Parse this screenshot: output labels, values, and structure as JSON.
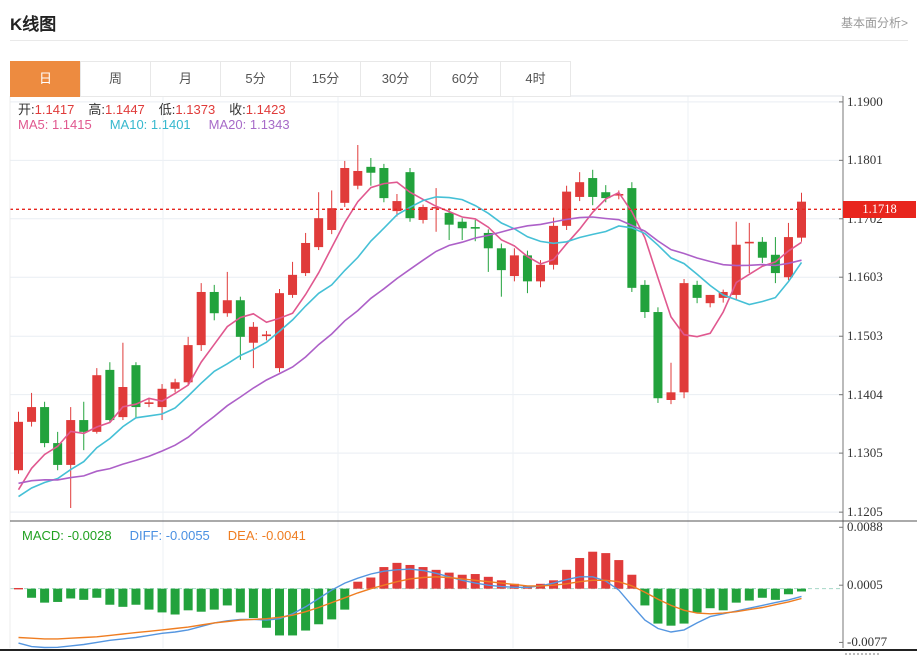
{
  "header": {
    "title": "K线图",
    "link": "基本面分析>"
  },
  "tabs": {
    "active": "日",
    "items": [
      "日",
      "周",
      "月",
      "5分",
      "15分",
      "30分",
      "60分",
      "4时"
    ]
  },
  "main_legend": {
    "ohlc": [
      {
        "label": "开:",
        "value": "1.1417"
      },
      {
        "label": "高:",
        "value": "1.1447"
      },
      {
        "label": "低:",
        "value": "1.1373"
      },
      {
        "label": "收:",
        "value": "1.1423"
      }
    ],
    "ohlc_value_color": "#e03b3a",
    "ma": [
      {
        "text": "MA5: 1.1415",
        "color": "#e0588f"
      },
      {
        "text": "MA10: 1.1401",
        "color": "#36b8ce"
      },
      {
        "text": "MA20: 1.1343",
        "color": "#a76bc8"
      }
    ]
  },
  "macd_legend": [
    {
      "text": "MACD: -0.0028",
      "color": "#21a121"
    },
    {
      "text": "DIFF: -0.0055",
      "color": "#4a90e2"
    },
    {
      "text": "DEA: -0.0041",
      "color": "#ef7d21"
    }
  ],
  "price_axis": {
    "ticks": [
      "1.1900",
      "1.1801",
      "1.1702",
      "1.1603",
      "1.1503",
      "1.1404",
      "1.1305",
      "1.1205"
    ],
    "last_price_badge": "1.1718",
    "badge_color": "#e8251d"
  },
  "macd_axis": {
    "ticks": [
      "0.0088",
      "0.0005",
      "-0.0077"
    ]
  },
  "chart_data": {
    "type": "candlestick",
    "title": "K线图",
    "panes": [
      "price",
      "macd"
    ],
    "legend_position": "top-left",
    "grid": true,
    "price_range": {
      "top": 1.191,
      "bottom": 1.119
    },
    "price_ticks": [
      1.19,
      1.1801,
      1.1702,
      1.1603,
      1.1503,
      1.1404,
      1.1305,
      1.1205
    ],
    "last_price": 1.1718,
    "colors": {
      "up": "#e03b3a",
      "down": "#22a23c",
      "ma5": "#e0588f",
      "ma10": "#45c0d6",
      "ma20": "#ad60c8",
      "diff": "#5596e0",
      "dea": "#ef7d21",
      "last_price_line": "#e6261f",
      "macd_zero_line": "#a5d8c8"
    },
    "candles": [
      [
        1.1276,
        1.1375,
        1.127,
        1.1358
      ],
      [
        1.1358,
        1.1407,
        1.135,
        1.1383
      ],
      [
        1.1383,
        1.1392,
        1.1315,
        1.1322
      ],
      [
        1.1322,
        1.1341,
        1.1276,
        1.1285
      ],
      [
        1.1285,
        1.1383,
        1.1212,
        1.1361
      ],
      [
        1.1361,
        1.1392,
        1.131,
        1.1341
      ],
      [
        1.1341,
        1.1449,
        1.1338,
        1.1437
      ],
      [
        1.1446,
        1.1459,
        1.1356,
        1.1361
      ],
      [
        1.1366,
        1.1492,
        1.1361,
        1.1417
      ],
      [
        1.1454,
        1.1459,
        1.1364,
        1.1383
      ],
      [
        1.139,
        1.1398,
        1.1383,
        1.1391
      ],
      [
        1.1383,
        1.1422,
        1.1361,
        1.1414
      ],
      [
        1.1414,
        1.1431,
        1.1408,
        1.1425
      ],
      [
        1.1425,
        1.1502,
        1.142,
        1.1488
      ],
      [
        1.1488,
        1.1593,
        1.1478,
        1.1578
      ],
      [
        1.1578,
        1.159,
        1.153,
        1.1542
      ],
      [
        1.1542,
        1.1612,
        1.1536,
        1.1564
      ],
      [
        1.1564,
        1.157,
        1.1463,
        1.1502
      ],
      [
        1.1492,
        1.1527,
        1.1449,
        1.1519
      ],
      [
        1.1505,
        1.1512,
        1.1496,
        1.1506
      ],
      [
        1.1449,
        1.1583,
        1.1442,
        1.1576
      ],
      [
        1.1573,
        1.1629,
        1.1568,
        1.1607
      ],
      [
        1.161,
        1.1678,
        1.1605,
        1.1661
      ],
      [
        1.1654,
        1.1747,
        1.1649,
        1.1703
      ],
      [
        1.1683,
        1.175,
        1.1676,
        1.172
      ],
      [
        1.1729,
        1.18,
        1.1722,
        1.1788
      ],
      [
        1.1758,
        1.1827,
        1.1752,
        1.1783
      ],
      [
        1.179,
        1.1805,
        1.1758,
        1.178
      ],
      [
        1.1788,
        1.1795,
        1.173,
        1.1737
      ],
      [
        1.1715,
        1.1744,
        1.1706,
        1.1732
      ],
      [
        1.1781,
        1.1788,
        1.1697,
        1.1703
      ],
      [
        1.17,
        1.1726,
        1.1694,
        1.1722
      ],
      [
        1.172,
        1.1754,
        1.168,
        1.1722
      ],
      [
        1.1712,
        1.172,
        1.1666,
        1.1692
      ],
      [
        1.1697,
        1.1703,
        1.1666,
        1.1686
      ],
      [
        1.1688,
        1.17,
        1.1664,
        1.1687
      ],
      [
        1.1678,
        1.1684,
        1.1612,
        1.1652
      ],
      [
        1.1652,
        1.166,
        1.157,
        1.1615
      ],
      [
        1.1605,
        1.1652,
        1.1596,
        1.164
      ],
      [
        1.164,
        1.1648,
        1.1576,
        1.1596
      ],
      [
        1.1596,
        1.1632,
        1.1586,
        1.1624
      ],
      [
        1.1624,
        1.1704,
        1.1616,
        1.169
      ],
      [
        1.169,
        1.1758,
        1.1683,
        1.1748
      ],
      [
        1.1739,
        1.1781,
        1.1732,
        1.1764
      ],
      [
        1.1771,
        1.1785,
        1.1725,
        1.1739
      ],
      [
        1.1747,
        1.1759,
        1.173,
        1.1737
      ],
      [
        1.1742,
        1.175,
        1.1735,
        1.1744
      ],
      [
        1.1754,
        1.1764,
        1.1578,
        1.1585
      ],
      [
        1.159,
        1.1598,
        1.1534,
        1.1544
      ],
      [
        1.1544,
        1.1552,
        1.139,
        1.1398
      ],
      [
        1.1395,
        1.1458,
        1.1388,
        1.1408
      ],
      [
        1.1408,
        1.16,
        1.1398,
        1.1593
      ],
      [
        1.159,
        1.1597,
        1.1559,
        1.1568
      ],
      [
        1.1559,
        1.1573,
        1.1552,
        1.1573
      ],
      [
        1.1568,
        1.1582,
        1.156,
        1.1578
      ],
      [
        1.1573,
        1.1697,
        1.1564,
        1.1658
      ],
      [
        1.1663,
        1.1695,
        1.161,
        1.1663
      ],
      [
        1.1663,
        1.1671,
        1.1627,
        1.1636
      ],
      [
        1.1641,
        1.1671,
        1.1593,
        1.161
      ],
      [
        1.1603,
        1.1695,
        1.1598,
        1.1671
      ],
      [
        1.167,
        1.1746,
        1.1663,
        1.1731
      ]
    ],
    "ma_periods": [
      5,
      10,
      20
    ],
    "ma_prehistory": [
      1.13,
      1.1296,
      1.1292,
      1.1288,
      1.1285,
      1.1282,
      1.1278,
      1.1272,
      1.1266,
      1.1258,
      1.1248,
      1.1238,
      1.1228,
      1.1218,
      1.121,
      1.1205,
      1.1202,
      1.1205,
      1.1215,
      1.1235
    ],
    "macd": {
      "range": {
        "top": 0.0097,
        "bottom": -0.0085
      },
      "ticks": [
        0.0088,
        0.0005,
        -0.0077
      ],
      "hist": [
        0.0001,
        -0.0013,
        -0.002,
        -0.0019,
        -0.0014,
        -0.0016,
        -0.0013,
        -0.0023,
        -0.0026,
        -0.0023,
        -0.003,
        -0.0034,
        -0.0037,
        -0.0031,
        -0.0033,
        -0.003,
        -0.0024,
        -0.0034,
        -0.0042,
        -0.0056,
        -0.0067,
        -0.0067,
        -0.006,
        -0.0051,
        -0.0044,
        -0.003,
        0.001,
        0.0016,
        0.0031,
        0.0037,
        0.0034,
        0.0031,
        0.0027,
        0.0023,
        0.002,
        0.0021,
        0.0017,
        0.0012,
        0.0007,
        0.0004,
        0.0007,
        0.0012,
        0.0027,
        0.0044,
        0.0053,
        0.0051,
        0.0041,
        0.002,
        -0.0024,
        -0.005,
        -0.0053,
        -0.005,
        -0.0034,
        -0.0028,
        -0.0031,
        -0.002,
        -0.0017,
        -0.0013,
        -0.0016,
        -0.0008,
        -0.0004
      ],
      "diff": [
        -0.0078,
        -0.0083,
        -0.0085,
        -0.0084,
        -0.0082,
        -0.008,
        -0.0077,
        -0.0074,
        -0.0072,
        -0.007,
        -0.0067,
        -0.0064,
        -0.0062,
        -0.0059,
        -0.0054,
        -0.0049,
        -0.0046,
        -0.0044,
        -0.0044,
        -0.0045,
        -0.0043,
        -0.0036,
        -0.0026,
        -0.0014,
        -0.0002,
        0.0008,
        0.0015,
        0.0021,
        0.0025,
        0.0027,
        0.0028,
        0.0026,
        0.0022,
        0.0017,
        0.0012,
        0.0008,
        0.0005,
        0.0003,
        0.0002,
        0.0002,
        0.0004,
        0.0008,
        0.0013,
        0.0017,
        0.0017,
        0.0011,
        -0.0002,
        -0.0024,
        -0.0045,
        -0.0057,
        -0.0062,
        -0.0059,
        -0.0049,
        -0.004,
        -0.0036,
        -0.0032,
        -0.0028,
        -0.0024,
        -0.002,
        -0.0016,
        -0.0011
      ],
      "dea": [
        -0.007,
        -0.0071,
        -0.0072,
        -0.0072,
        -0.0071,
        -0.007,
        -0.0069,
        -0.0067,
        -0.0065,
        -0.0063,
        -0.0061,
        -0.0059,
        -0.0057,
        -0.0055,
        -0.0052,
        -0.0049,
        -0.0047,
        -0.0045,
        -0.0044,
        -0.0043,
        -0.0041,
        -0.0038,
        -0.0033,
        -0.0027,
        -0.002,
        -0.0013,
        -0.0006,
        0.0,
        0.0005,
        0.001,
        0.0014,
        0.0016,
        0.0017,
        0.0016,
        0.0014,
        0.0012,
        0.001,
        0.0008,
        0.0006,
        0.0004,
        0.0004,
        0.0005,
        0.0007,
        0.001,
        0.0012,
        0.0012,
        0.001,
        0.0004,
        -0.0005,
        -0.0015,
        -0.0024,
        -0.0031,
        -0.0035,
        -0.0036,
        -0.0035,
        -0.0033,
        -0.003,
        -0.0027,
        -0.0023,
        -0.0019,
        -0.0014
      ]
    }
  }
}
